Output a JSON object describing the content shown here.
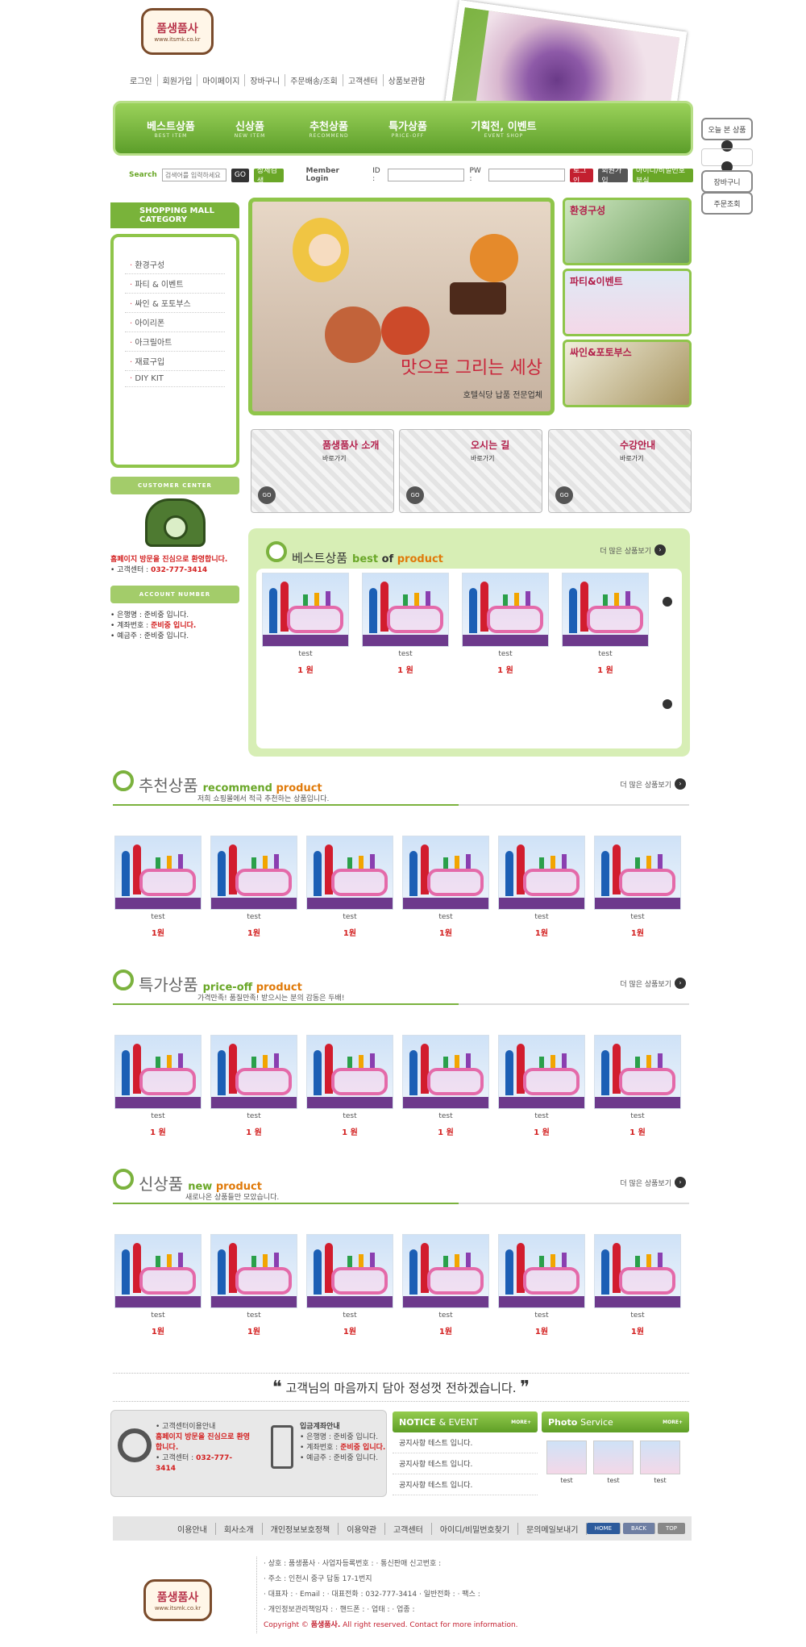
{
  "logo": {
    "title": "품생품사",
    "url": "www.itsmk.co.kr"
  },
  "top_links": [
    "로그인",
    "회원가입",
    "마이페이지",
    "장바구니",
    "주문배송/조회",
    "고객센터",
    "상품보관함"
  ],
  "nav": [
    {
      "label": "베스트상품",
      "en": "BEST ITEM"
    },
    {
      "label": "신상품",
      "en": "NEW ITEM"
    },
    {
      "label": "추천상품",
      "en": "RECOMMEND"
    },
    {
      "label": "특가상품",
      "en": "PRICE-OFF"
    },
    {
      "label": "기획전, 이벤트",
      "en": "EVENT SHOP"
    }
  ],
  "side_buttons": {
    "today": "오늘 본 상품",
    "cart": "장바구니",
    "order": "주문조회"
  },
  "search": {
    "label": "Search",
    "placeholder": "검색어를 입력하세요",
    "go": "GO",
    "detail": "상세검색",
    "member_label": "Member Login",
    "id_label": "ID :",
    "pw_label": "PW :",
    "login": "로그인",
    "join": "회원가입",
    "find": "아이디/비밀번호분실"
  },
  "category": {
    "title": "SHOPPING MALL CATEGORY",
    "items": [
      "환경구성",
      "파티 & 이벤트",
      "싸인 & 포토부스",
      "아이리폰",
      "아크릴아트",
      "재료구입",
      "DIY KIT"
    ]
  },
  "customer_center": {
    "title": "CUSTOMER CENTER",
    "text": "홈페이지 방문을 진심으로 환영합니다.",
    "phone_label": "• 고객센터 :",
    "phone": "032-777-3414"
  },
  "account": {
    "title": "ACCOUNT NUMBER",
    "bank": "• 은행명 : 준비중 입니다.",
    "number_label": "• 계좌번호 :",
    "number": "준비중 입니다.",
    "holder": "• 예금주 : 준비중 입니다."
  },
  "banner": {
    "title": "맛으로 그리는 세상",
    "sub": "호텔식당 납품 전문업체"
  },
  "side_thumbs": [
    "환경구성",
    "파티&이벤트",
    "싸인&포토부스"
  ],
  "quick_links": [
    {
      "title": "품생품사 소개",
      "sub": "바로가기",
      "go": "GO"
    },
    {
      "title": "오시는 길",
      "sub": "바로가기",
      "go": "GO"
    },
    {
      "title": "수강안내",
      "sub": "바로가기",
      "go": "GO"
    }
  ],
  "best": {
    "kor": "베스트상품",
    "eng_a": "best",
    "eng_b": "of",
    "eng_c": "product",
    "more": "더 많은 상품보기",
    "products": [
      {
        "name": "test",
        "price": "1 원"
      },
      {
        "name": "test",
        "price": "1 원"
      },
      {
        "name": "test",
        "price": "1 원"
      },
      {
        "name": "test",
        "price": "1 원"
      }
    ]
  },
  "recommend": {
    "kor": "추천상품",
    "eng_a": "recommend",
    "eng_b": "product",
    "desc": "저희 쇼핑몰에서 적극 추천하는 상품입니다.",
    "more": "더 많은 상품보기",
    "products": [
      {
        "name": "test",
        "price": "1원"
      },
      {
        "name": "test",
        "price": "1원"
      },
      {
        "name": "test",
        "price": "1원"
      },
      {
        "name": "test",
        "price": "1원"
      },
      {
        "name": "test",
        "price": "1원"
      },
      {
        "name": "test",
        "price": "1원"
      }
    ]
  },
  "priceoff": {
    "kor": "특가상품",
    "eng_a": "price-off",
    "eng_b": "product",
    "desc": "가격만족! 품질만족! 받으시는 분의 감동은 두배!",
    "more": "더 많은 상품보기",
    "products": [
      {
        "name": "test",
        "price": "1 원"
      },
      {
        "name": "test",
        "price": "1 원"
      },
      {
        "name": "test",
        "price": "1 원"
      },
      {
        "name": "test",
        "price": "1 원"
      },
      {
        "name": "test",
        "price": "1 원"
      },
      {
        "name": "test",
        "price": "1 원"
      }
    ]
  },
  "newp": {
    "kor": "신상품",
    "eng_a": "new",
    "eng_b": "product",
    "desc": "새로나온 상품들만 모았습니다.",
    "more": "더 많은 상품보기",
    "products": [
      {
        "name": "test",
        "price": "1원"
      },
      {
        "name": "test",
        "price": "1원"
      },
      {
        "name": "test",
        "price": "1원"
      },
      {
        "name": "test",
        "price": "1원"
      },
      {
        "name": "test",
        "price": "1원"
      },
      {
        "name": "test",
        "price": "1원"
      }
    ]
  },
  "slogan": "고객님의 마음까지 담아 정성껏 전하겠습니다.",
  "bottom_info": {
    "cc_title": "• 고객센터이용안내",
    "cc_text": "홈페이지 방문을 진심으로 환영합니다.",
    "cc_phone_label": "• 고객센터 :",
    "cc_phone": "032-777-3414",
    "acc_title": "입금계좌안내",
    "acc_bank": "• 은행명 : 준비중 입니다.",
    "acc_num_label": "• 계좌번호 :",
    "acc_num": "준비중 입니다.",
    "acc_holder": "• 예금주 : 준비중 입니다."
  },
  "notice": {
    "title_a": "NOTICE",
    "title_b": "& EVENT",
    "more": "MORE+",
    "items": [
      "공지사항 테스트 입니다.",
      "공지사항 테스트 입니다.",
      "공지사항 테스트 입니다."
    ]
  },
  "photo_service": {
    "title_a": "Photo",
    "title_b": "Service",
    "more": "MORE+",
    "items": [
      "test",
      "test",
      "test"
    ]
  },
  "footer_nav": [
    "이용안내",
    "회사소개",
    "개인정보보호정책",
    "이용약관",
    "고객센터",
    "아이디/비밀번호찾기",
    "문의메일보내기"
  ],
  "footer_btns": [
    "HOME",
    "BACK",
    "TOP"
  ],
  "footer_info": [
    "· 상호 : 품생품사   · 사업자등록번호 :    · 통신판매 신고번호 :",
    "· 주소 : 인천시 중구 답동 17-1번지",
    "· 대표자 :    · Email :    · 대표전화 : 032-777-3414   · 일반전화 :    · 팩스 :",
    "· 개인정보관리책임자 :    · 핸드폰 :    · 업태 :    · 업종 :"
  ],
  "copyright_a": "Copyright ©",
  "copyright_b": "품생품사.",
  "copyright_c": "All right reserved. Contact for more information."
}
